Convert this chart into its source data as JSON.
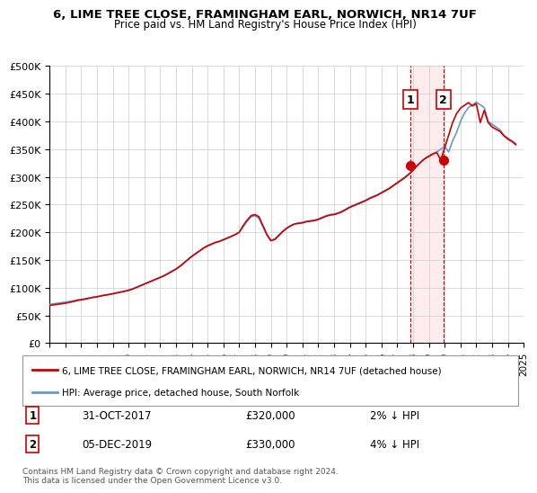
{
  "title": "6, LIME TREE CLOSE, FRAMINGHAM EARL, NORWICH, NR14 7UF",
  "subtitle": "Price paid vs. HM Land Registry's House Price Index (HPI)",
  "legend_line1": "6, LIME TREE CLOSE, FRAMINGHAM EARL, NORWICH, NR14 7UF (detached house)",
  "legend_line2": "HPI: Average price, detached house, South Norfolk",
  "point1_label": "1",
  "point1_date": "31-OCT-2017",
  "point1_price": "£320,000",
  "point1_pct": "2% ↓ HPI",
  "point2_label": "2",
  "point2_date": "05-DEC-2019",
  "point2_price": "£330,000",
  "point2_pct": "4% ↓ HPI",
  "footnote": "Contains HM Land Registry data © Crown copyright and database right 2024.\nThis data is licensed under the Open Government Licence v3.0.",
  "hpi_color": "#6699cc",
  "price_color": "#cc0000",
  "point_color": "#cc0000",
  "vline_color": "#cc0000",
  "shade_color": "#ffdddd",
  "background_color": "#ffffff",
  "grid_color": "#cccccc",
  "ylim": [
    0,
    500000
  ],
  "yticks": [
    0,
    50000,
    100000,
    150000,
    200000,
    250000,
    300000,
    350000,
    400000,
    450000,
    500000
  ],
  "ytick_labels": [
    "£0",
    "£50K",
    "£100K",
    "£150K",
    "£200K",
    "£250K",
    "£300K",
    "£350K",
    "£400K",
    "£450K",
    "£500K"
  ],
  "xmin": 1995,
  "xmax": 2025,
  "xticks": [
    1995,
    1996,
    1997,
    1998,
    1999,
    2000,
    2001,
    2002,
    2003,
    2004,
    2005,
    2006,
    2007,
    2008,
    2009,
    2010,
    2011,
    2012,
    2013,
    2014,
    2015,
    2016,
    2017,
    2018,
    2019,
    2020,
    2021,
    2022,
    2023,
    2024,
    2025
  ],
  "point1_x": 2017.83,
  "point1_y": 320000,
  "point2_x": 2019.92,
  "point2_y": 330000,
  "hpi_x": [
    1995,
    1995.25,
    1995.5,
    1995.75,
    1996,
    1996.25,
    1996.5,
    1996.75,
    1997,
    1997.25,
    1997.5,
    1997.75,
    1998,
    1998.25,
    1998.5,
    1998.75,
    1999,
    1999.25,
    1999.5,
    1999.75,
    2000,
    2000.25,
    2000.5,
    2000.75,
    2001,
    2001.25,
    2001.5,
    2001.75,
    2002,
    2002.25,
    2002.5,
    2002.75,
    2003,
    2003.25,
    2003.5,
    2003.75,
    2004,
    2004.25,
    2004.5,
    2004.75,
    2005,
    2005.25,
    2005.5,
    2005.75,
    2006,
    2006.25,
    2006.5,
    2006.75,
    2007,
    2007.25,
    2007.5,
    2007.75,
    2008,
    2008.25,
    2008.5,
    2008.75,
    2009,
    2009.25,
    2009.5,
    2009.75,
    2010,
    2010.25,
    2010.5,
    2010.75,
    2011,
    2011.25,
    2011.5,
    2011.75,
    2012,
    2012.25,
    2012.5,
    2012.75,
    2013,
    2013.25,
    2013.5,
    2013.75,
    2014,
    2014.25,
    2014.5,
    2014.75,
    2015,
    2015.25,
    2015.5,
    2015.75,
    2016,
    2016.25,
    2016.5,
    2016.75,
    2017,
    2017.25,
    2017.5,
    2017.75,
    2018,
    2018.25,
    2018.5,
    2018.75,
    2019,
    2019.25,
    2019.5,
    2019.75,
    2020,
    2020.25,
    2020.5,
    2020.75,
    2021,
    2021.25,
    2021.5,
    2021.75,
    2022,
    2022.25,
    2022.5,
    2022.75,
    2023,
    2023.25,
    2023.5,
    2023.75,
    2024,
    2024.25,
    2024.5
  ],
  "hpi_y": [
    70000,
    71000,
    72000,
    73000,
    74000,
    75000,
    76500,
    78000,
    79000,
    80000,
    81500,
    83000,
    84000,
    85500,
    87000,
    88000,
    89500,
    91000,
    92500,
    94000,
    96000,
    98000,
    101000,
    104000,
    107000,
    110000,
    113000,
    116000,
    119000,
    122000,
    126000,
    130000,
    134000,
    139000,
    145000,
    151000,
    157000,
    162000,
    167000,
    172000,
    176000,
    179000,
    182000,
    184000,
    187000,
    190000,
    193000,
    196000,
    200000,
    210000,
    220000,
    228000,
    230000,
    225000,
    210000,
    195000,
    185000,
    188000,
    195000,
    202000,
    208000,
    212000,
    215000,
    217000,
    218000,
    220000,
    221000,
    222000,
    224000,
    227000,
    230000,
    232000,
    233000,
    235000,
    238000,
    242000,
    246000,
    249000,
    252000,
    255000,
    258000,
    262000,
    265000,
    268000,
    272000,
    276000,
    280000,
    285000,
    290000,
    295000,
    300000,
    306000,
    313000,
    320000,
    327000,
    333000,
    338000,
    342000,
    345000,
    350000,
    355000,
    345000,
    365000,
    380000,
    400000,
    415000,
    425000,
    430000,
    435000,
    430000,
    425000,
    400000,
    395000,
    390000,
    385000,
    375000,
    370000,
    365000,
    360000
  ],
  "price_x": [
    1995,
    1995.25,
    1995.5,
    1995.75,
    1996,
    1996.25,
    1996.5,
    1996.75,
    1997,
    1997.25,
    1997.5,
    1997.75,
    1998,
    1998.25,
    1998.5,
    1998.75,
    1999,
    1999.25,
    1999.5,
    1999.75,
    2000,
    2000.25,
    2000.5,
    2000.75,
    2001,
    2001.25,
    2001.5,
    2001.75,
    2002,
    2002.25,
    2002.5,
    2002.75,
    2003,
    2003.25,
    2003.5,
    2003.75,
    2004,
    2004.25,
    2004.5,
    2004.75,
    2005,
    2005.25,
    2005.5,
    2005.75,
    2006,
    2006.25,
    2006.5,
    2006.75,
    2007,
    2007.25,
    2007.5,
    2007.75,
    2008,
    2008.25,
    2008.5,
    2008.75,
    2009,
    2009.25,
    2009.5,
    2009.75,
    2010,
    2010.25,
    2010.5,
    2010.75,
    2011,
    2011.25,
    2011.5,
    2011.75,
    2012,
    2012.25,
    2012.5,
    2012.75,
    2013,
    2013.25,
    2013.5,
    2013.75,
    2014,
    2014.25,
    2014.5,
    2014.75,
    2015,
    2015.25,
    2015.5,
    2015.75,
    2016,
    2016.25,
    2016.5,
    2016.75,
    2017,
    2017.25,
    2017.5,
    2017.75,
    2018,
    2018.25,
    2018.5,
    2018.75,
    2019,
    2019.25,
    2019.5,
    2019.75,
    2020,
    2020.25,
    2020.5,
    2020.75,
    2021,
    2021.25,
    2021.5,
    2021.75,
    2022,
    2022.25,
    2022.5,
    2022.75,
    2023,
    2023.25,
    2023.5,
    2023.75,
    2024,
    2024.25,
    2024.5
  ],
  "price_y": [
    68000,
    69000,
    70000,
    71000,
    72000,
    73500,
    75000,
    77000,
    78000,
    79500,
    81000,
    82500,
    83500,
    85000,
    86500,
    87500,
    89000,
    90500,
    92000,
    93500,
    95000,
    97500,
    100500,
    103500,
    106500,
    109500,
    112500,
    115500,
    118500,
    121500,
    125500,
    129500,
    133500,
    138500,
    144500,
    150500,
    156500,
    161500,
    166500,
    171500,
    175500,
    178500,
    181500,
    183500,
    186500,
    189500,
    192500,
    196000,
    200000,
    212000,
    222000,
    230000,
    232000,
    228000,
    212000,
    196000,
    185000,
    187000,
    194000,
    201000,
    207000,
    211500,
    215000,
    216000,
    217000,
    219000,
    220000,
    221000,
    223000,
    226000,
    229000,
    231000,
    232000,
    234000,
    237000,
    241000,
    245000,
    248000,
    251000,
    254000,
    257000,
    261000,
    264000,
    267000,
    271000,
    275000,
    279000,
    284000,
    289000,
    294000,
    299000,
    305000,
    312000,
    320000,
    327000,
    333000,
    337000,
    341000,
    344000,
    330000,
    353000,
    375000,
    398000,
    414000,
    424000,
    429000,
    434000,
    428000,
    432000,
    398000,
    420000,
    398000,
    390000,
    386000,
    382000,
    374000,
    368000,
    364000,
    358000
  ]
}
